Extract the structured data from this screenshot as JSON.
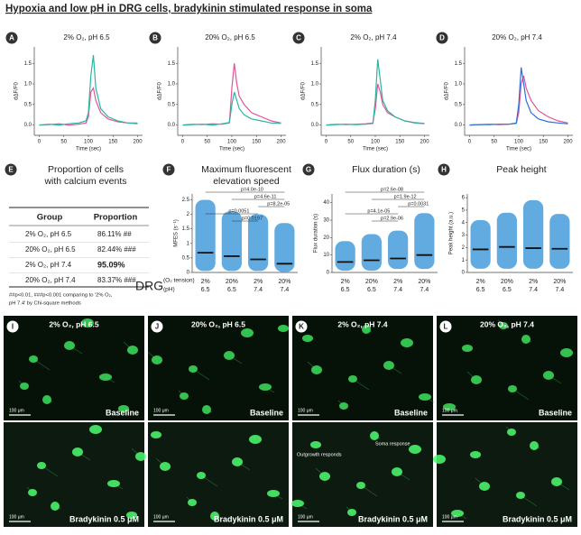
{
  "title": "Hypoxia and low pH in DRG cells, bradykinin stimulated response in soma",
  "chart_data": [
    {
      "type": "line",
      "label": "A",
      "title": "2% O₂, pH 6.5",
      "x_label": "Time (sec)",
      "y_label": "dΔF/F0",
      "x": [
        0,
        20,
        40,
        60,
        80,
        95,
        100,
        105,
        110,
        115,
        125,
        140,
        160,
        180,
        200
      ],
      "series": [
        {
          "color": "#e0559a",
          "values": [
            0,
            0.01,
            0.03,
            0,
            0.02,
            0.05,
            0.2,
            0.8,
            0.9,
            0.6,
            0.3,
            0.15,
            0.08,
            0.05,
            0.03
          ]
        },
        {
          "color": "#2bb5a0",
          "values": [
            0,
            0.02,
            0,
            0.03,
            0.05,
            0.1,
            0.3,
            1.2,
            1.7,
            0.9,
            0.4,
            0.2,
            0.1,
            0.05,
            0.05
          ]
        }
      ],
      "xlim": [
        -10,
        210
      ],
      "ylim": [
        -0.25,
        1.9
      ],
      "xticks": [
        0,
        50,
        100,
        150,
        200
      ],
      "yticks": [
        {
          "value": 0,
          "label": "0.0"
        },
        {
          "value": 0.5,
          "label": "0.5"
        },
        {
          "value": 1,
          "label": "1.0"
        },
        {
          "value": 1.5,
          "label": "1.5"
        }
      ]
    },
    {
      "type": "line",
      "label": "B",
      "title": "20% O₂, pH 6.5",
      "x_label": "Time (sec)",
      "y_label": "dΔF/F0",
      "x": [
        0,
        20,
        40,
        60,
        80,
        95,
        100,
        105,
        110,
        115,
        125,
        140,
        160,
        180,
        200
      ],
      "series": [
        {
          "color": "#e0559a",
          "values": [
            0,
            0.02,
            0.01,
            0.03,
            0.02,
            0.05,
            0.9,
            1.5,
            1.0,
            0.7,
            0.5,
            0.3,
            0.2,
            0.1,
            0.05
          ]
        },
        {
          "color": "#2bb5a0",
          "values": [
            0,
            0.01,
            0.02,
            0,
            0.03,
            0.06,
            0.5,
            0.8,
            0.6,
            0.4,
            0.25,
            0.15,
            0.1,
            0.05,
            0.04
          ]
        }
      ],
      "xlim": [
        -10,
        210
      ],
      "ylim": [
        -0.25,
        1.9
      ],
      "xticks": [
        0,
        50,
        100,
        150,
        200
      ],
      "yticks": [
        {
          "value": 0,
          "label": "0.0"
        },
        {
          "value": 0.5,
          "label": "0.5"
        },
        {
          "value": 1,
          "label": "1.0"
        },
        {
          "value": 1.5,
          "label": "1.5"
        }
      ]
    },
    {
      "type": "line",
      "label": "C",
      "title": "2% O₂, pH 7.4",
      "x_label": "Time (sec)",
      "y_label": "dΔF/F0",
      "x": [
        0,
        20,
        40,
        60,
        80,
        95,
        100,
        105,
        110,
        115,
        125,
        140,
        160,
        180,
        200
      ],
      "series": [
        {
          "color": "#e0559a",
          "values": [
            0,
            0.02,
            0.01,
            0.02,
            0.03,
            0.05,
            0.4,
            1.0,
            0.8,
            0.5,
            0.3,
            0.2,
            0.1,
            0.06,
            0.04
          ]
        },
        {
          "color": "#2bb5a0",
          "values": [
            0,
            0.01,
            0.02,
            0.01,
            0.02,
            0.04,
            0.6,
            1.6,
            1.1,
            0.6,
            0.35,
            0.2,
            0.1,
            0.05,
            0.03
          ]
        }
      ],
      "xlim": [
        -10,
        210
      ],
      "ylim": [
        -0.25,
        1.9
      ],
      "xticks": [
        0,
        50,
        100,
        150,
        200
      ],
      "yticks": [
        {
          "value": 0,
          "label": "0.0"
        },
        {
          "value": 0.5,
          "label": "0.5"
        },
        {
          "value": 1,
          "label": "1.0"
        },
        {
          "value": 1.5,
          "label": "1.5"
        }
      ]
    },
    {
      "type": "line",
      "label": "D",
      "title": "20% O₂, pH 7.4",
      "x_label": "Time (sec)",
      "y_label": "dΔF/F0",
      "x": [
        0,
        20,
        40,
        60,
        80,
        95,
        100,
        105,
        110,
        115,
        125,
        140,
        160,
        180,
        200
      ],
      "series": [
        {
          "color": "#e0559a",
          "values": [
            0,
            0.01,
            0.02,
            0.01,
            0.02,
            0.04,
            0.3,
            1.0,
            1.2,
            0.9,
            0.6,
            0.35,
            0.2,
            0.1,
            0.05
          ]
        },
        {
          "color": "#2f6fd6",
          "values": [
            0,
            0.01,
            0.01,
            0.02,
            0.02,
            0.05,
            0.5,
            1.4,
            1.0,
            0.6,
            0.3,
            0.15,
            0.08,
            0.05,
            0.03
          ]
        }
      ],
      "xlim": [
        -10,
        210
      ],
      "ylim": [
        -0.25,
        1.9
      ],
      "xticks": [
        0,
        50,
        100,
        150,
        200
      ],
      "yticks": [
        {
          "value": 0,
          "label": "0.0"
        },
        {
          "value": 0.5,
          "label": "0.5"
        },
        {
          "value": 1,
          "label": "1.0"
        },
        {
          "value": 1.5,
          "label": "1.5"
        }
      ]
    },
    {
      "type": "dot",
      "label": "F",
      "title": [
        "Maximum fluorescent",
        "elevation speed"
      ],
      "y_label": "MFES (s⁻¹)",
      "color": "#2e8fd6",
      "categories": [
        "2%",
        "20%",
        "2%",
        "20%"
      ],
      "categories_ph": [
        "6.5",
        "6.5",
        "7.4",
        "7.4"
      ],
      "values": [
        0.68,
        0.56,
        0.45,
        0.3
      ],
      "ranges": [
        [
          0.05,
          2.5
        ],
        [
          0.05,
          2.1
        ],
        [
          0.05,
          2.0
        ],
        [
          0.02,
          1.7
        ]
      ],
      "ylim": [
        0,
        2.7
      ],
      "yticks": [
        0,
        0.5,
        1,
        1.5,
        2,
        2.5
      ],
      "comparisons": [
        {
          "p": "p=4.0e-10",
          "groups": [
            0,
            3
          ]
        },
        {
          "p": "p=4.6e-11",
          "groups": [
            1,
            3
          ]
        },
        {
          "p": "p=8.2e-05",
          "groups": [
            2,
            3
          ]
        },
        {
          "p": "p=0.0051",
          "groups": [
            0,
            2
          ]
        },
        {
          "p": "p=0.0197",
          "groups": [
            1,
            2
          ]
        }
      ]
    },
    {
      "type": "dot",
      "label": "G",
      "title": [
        "Flux duration (s)"
      ],
      "y_label": "Flux duration (s)",
      "color": "#2e8fd6",
      "categories": [
        "2%",
        "20%",
        "2%",
        "20%"
      ],
      "categories_ph": [
        "6.5",
        "6.5",
        "7.4",
        "7.4"
      ],
      "values": [
        6,
        7,
        8,
        10
      ],
      "ranges": [
        [
          1,
          18
        ],
        [
          1,
          22
        ],
        [
          2,
          24
        ],
        [
          2,
          34
        ]
      ],
      "ylim": [
        0,
        45
      ],
      "yticks": [
        0,
        10,
        20,
        30,
        40
      ],
      "comparisons": [
        {
          "p": "p=2.6e-08",
          "groups": [
            0,
            3
          ]
        },
        {
          "p": "p=1.9e-12",
          "groups": [
            1,
            3
          ]
        },
        {
          "p": "p=0.0031",
          "groups": [
            2,
            3
          ]
        },
        {
          "p": "p=4.1e-05",
          "groups": [
            0,
            2
          ]
        },
        {
          "p": "p=2.9e-06",
          "groups": [
            1,
            2
          ]
        }
      ]
    },
    {
      "type": "dot",
      "label": "H",
      "title": [
        "Peak height"
      ],
      "y_label": "Peak height (a.u.)",
      "color": "#2e8fd6",
      "categories": [
        "2%",
        "20%",
        "2%",
        "20%"
      ],
      "categories_ph": [
        "6.5",
        "6.5",
        "7.4",
        "7.4"
      ],
      "values": [
        1.85,
        2.05,
        1.95,
        1.9
      ],
      "ranges": [
        [
          0.3,
          4.2
        ],
        [
          0.3,
          4.8
        ],
        [
          0.3,
          5.8
        ],
        [
          0.3,
          4.7
        ]
      ],
      "ylim": [
        0,
        6.3
      ],
      "yticks": [
        0,
        1,
        2,
        3,
        4,
        5,
        6
      ],
      "comparisons": []
    }
  ],
  "drg_label": "DRG",
  "drg_o2": "(O₂ tension)",
  "drg_ph": "(pH)",
  "table": {
    "label": "E",
    "title": [
      "Proportion of cells",
      "with calcium events"
    ],
    "header": [
      "Group",
      "Proportion"
    ],
    "rows": [
      [
        "2%  O₂, pH 6.5",
        "86.11% ##"
      ],
      [
        "20% O₂, pH 6.5",
        "82.44% ###"
      ],
      [
        "2%  O₂, pH 7.4",
        "95.09%"
      ],
      [
        "20% O₂, pH 7.4",
        "83.37% ###"
      ]
    ],
    "highlight_row": 2,
    "footnote": [
      "##p<0.01, ###p<0.001 comparing to '2% O₂,",
      "pH 7.4' by Chi-square methods"
    ]
  },
  "images": [
    {
      "label": "I",
      "title": "2% O₂, pH 6.5",
      "top": "Baseline",
      "bottom": "Bradykinin 0.5 μM",
      "scale": "100 μm"
    },
    {
      "label": "J",
      "title": "20% O₂, pH 6.5",
      "top": "Baseline",
      "bottom": "Bradykinin 0.5 μM",
      "scale": "100 μm"
    },
    {
      "label": "K",
      "title": "2% O₂, pH 7.4",
      "top": "Baseline",
      "bottom": "Bradykinin 0.5 μM",
      "scale": "100 μm",
      "notes": [
        "Outgrowth responds",
        "Soma response"
      ]
    },
    {
      "label": "L",
      "title": "20% O₂, pH 7.4",
      "top": "Baseline",
      "bottom": "Bradykinin 0.5 μM",
      "scale": "100 μm"
    }
  ]
}
